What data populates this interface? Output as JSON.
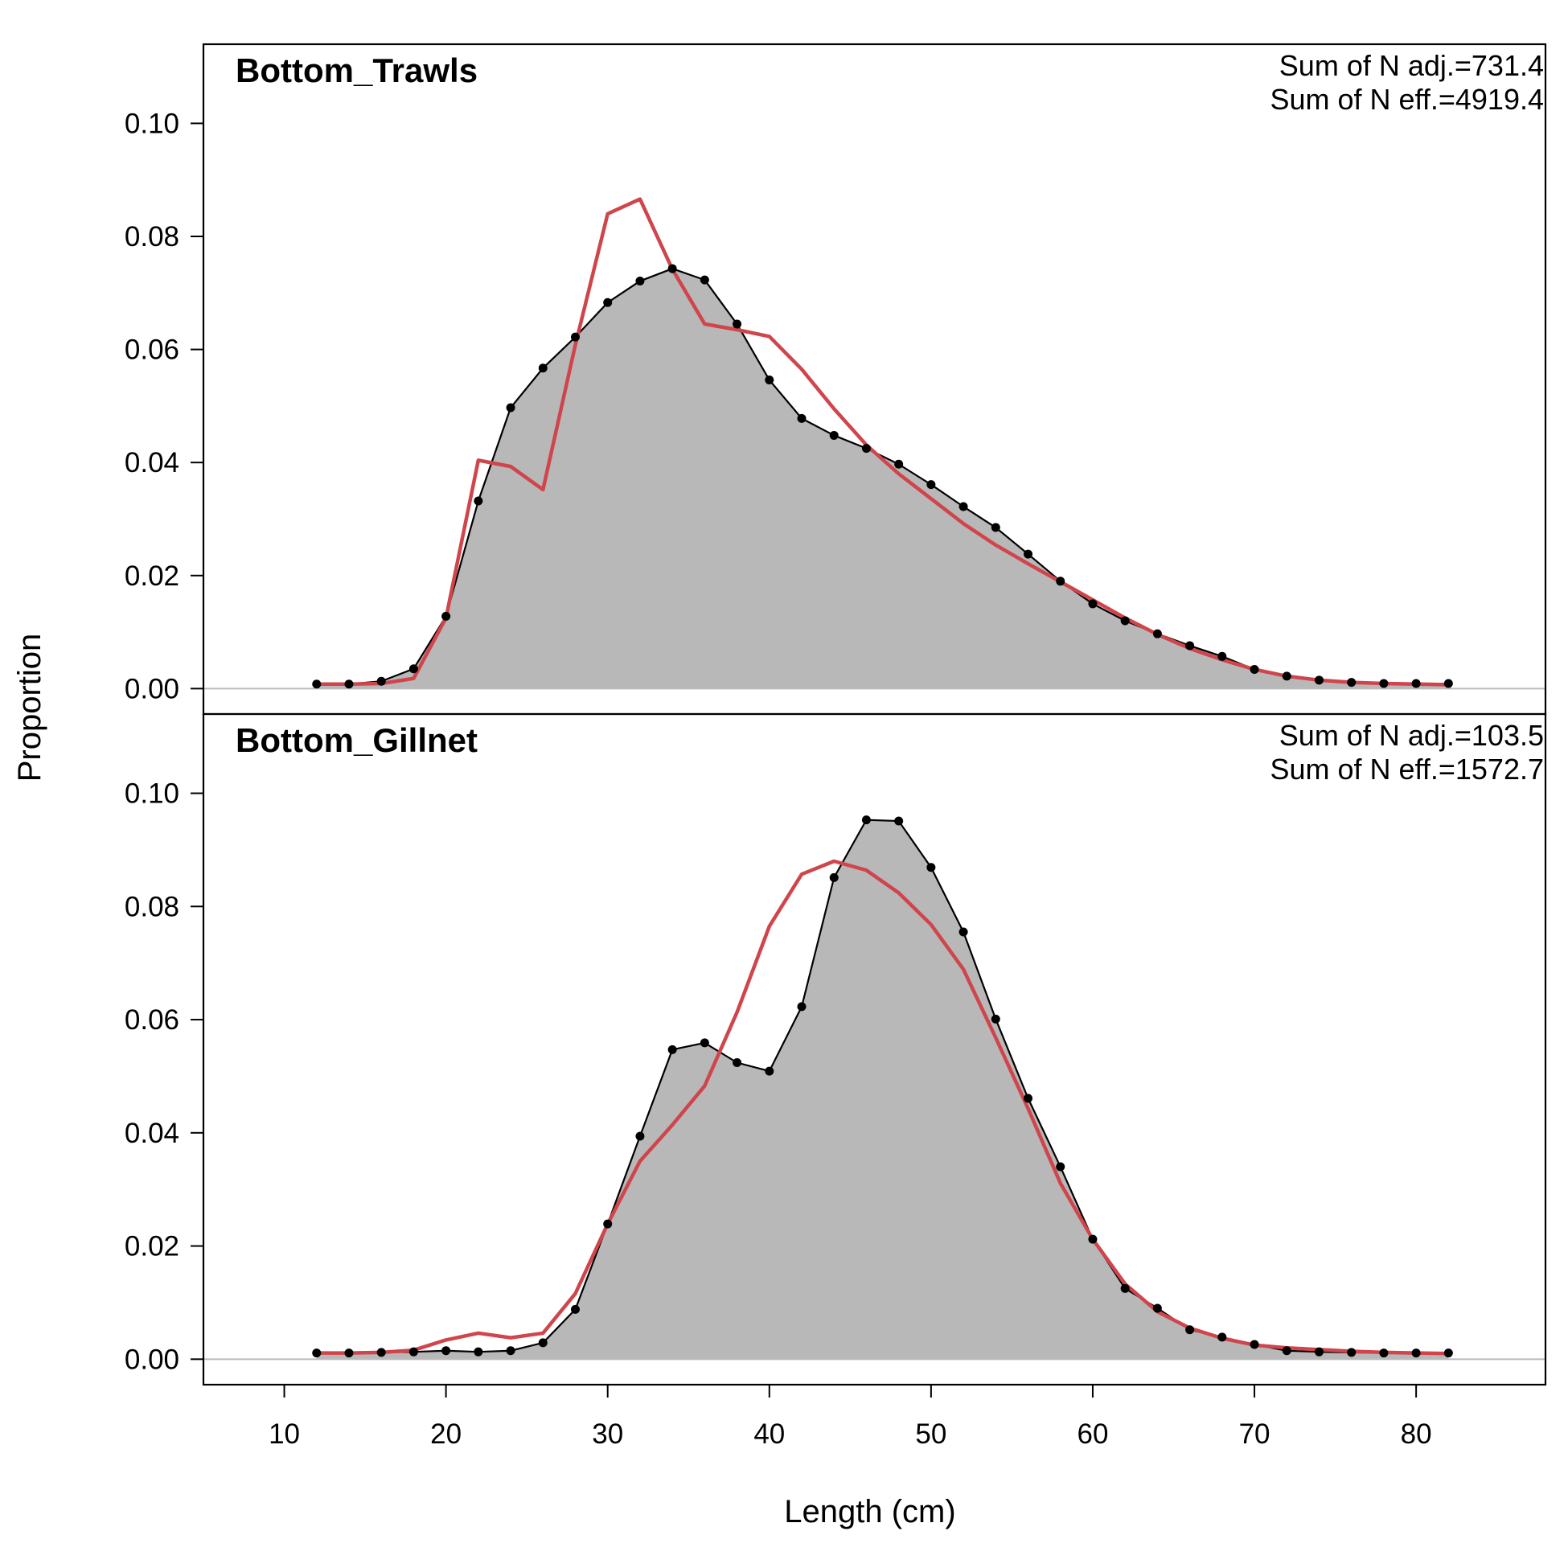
{
  "chart_data": {
    "type": "area",
    "xlabel": "Length (cm)",
    "ylabel": "Proportion",
    "xlim": [
      5,
      88
    ],
    "ylim": [
      -0.0045,
      0.114
    ],
    "x_ticks": [
      10,
      20,
      30,
      40,
      50,
      60,
      70,
      80
    ],
    "y_ticks": [
      0.0,
      0.02,
      0.04,
      0.06,
      0.08,
      0.1
    ],
    "y_tick_labels": [
      "0.00",
      "0.02",
      "0.04",
      "0.06",
      "0.08",
      "0.10"
    ],
    "colors": {
      "observed_fill": "#b8b8b8",
      "observed_line": "#000000",
      "expected_line": "#d0454c",
      "zero_line": "#bbbbbb"
    },
    "grid": false,
    "x": [
      12,
      14,
      16,
      18,
      20,
      22,
      24,
      26,
      28,
      30,
      32,
      34,
      36,
      38,
      40,
      42,
      44,
      46,
      48,
      50,
      52,
      54,
      56,
      58,
      60,
      62,
      64,
      66,
      68,
      70,
      72,
      74,
      76,
      78,
      80,
      82
    ],
    "panels": [
      {
        "title": "Bottom_Trawls",
        "annotation_1": "Sum of N adj.=731.4",
        "annotation_2": "Sum of N eff.=4919.4",
        "observed": [
          0.0008,
          0.0008,
          0.0013,
          0.0035,
          0.0128,
          0.0332,
          0.0497,
          0.0567,
          0.0622,
          0.0683,
          0.0721,
          0.0743,
          0.0723,
          0.0645,
          0.0546,
          0.0478,
          0.0448,
          0.0425,
          0.0397,
          0.0361,
          0.0322,
          0.0285,
          0.0238,
          0.019,
          0.015,
          0.012,
          0.0097,
          0.0076,
          0.0057,
          0.0034,
          0.0022,
          0.0015,
          0.0011,
          0.0009,
          0.0009,
          0.0009
        ],
        "expected": [
          0.0008,
          0.0008,
          0.0009,
          0.0018,
          0.0125,
          0.0404,
          0.0393,
          0.0352,
          0.0608,
          0.084,
          0.0866,
          0.0742,
          0.0645,
          0.0635,
          0.0623,
          0.0565,
          0.0495,
          0.0431,
          0.038,
          0.0336,
          0.0292,
          0.0254,
          0.0221,
          0.0189,
          0.0157,
          0.0125,
          0.0096,
          0.0071,
          0.0051,
          0.0034,
          0.0022,
          0.0015,
          0.0011,
          0.0009,
          0.0008,
          0.0007
        ]
      },
      {
        "title": "Bottom_Gillnet",
        "annotation_1": "Sum of N adj.=103.5",
        "annotation_2": "Sum of N eff.=1572.7",
        "observed": [
          0.0011,
          0.0011,
          0.0012,
          0.0013,
          0.0015,
          0.0013,
          0.0015,
          0.0029,
          0.0088,
          0.0239,
          0.0394,
          0.0547,
          0.0559,
          0.0524,
          0.0509,
          0.0623,
          0.0851,
          0.0953,
          0.0951,
          0.0869,
          0.0755,
          0.0601,
          0.0461,
          0.034,
          0.0212,
          0.0125,
          0.009,
          0.0052,
          0.0039,
          0.0026,
          0.0015,
          0.0013,
          0.0012,
          0.0011,
          0.0011,
          0.0011
        ],
        "expected": [
          0.0011,
          0.0011,
          0.0012,
          0.0016,
          0.0034,
          0.0046,
          0.0038,
          0.0046,
          0.0116,
          0.0239,
          0.035,
          0.0414,
          0.0483,
          0.0613,
          0.0765,
          0.0857,
          0.088,
          0.0864,
          0.0824,
          0.0768,
          0.0689,
          0.0568,
          0.0443,
          0.0311,
          0.0212,
          0.0133,
          0.0084,
          0.0055,
          0.0037,
          0.0025,
          0.002,
          0.0017,
          0.0014,
          0.0012,
          0.0011,
          0.001
        ]
      }
    ]
  }
}
